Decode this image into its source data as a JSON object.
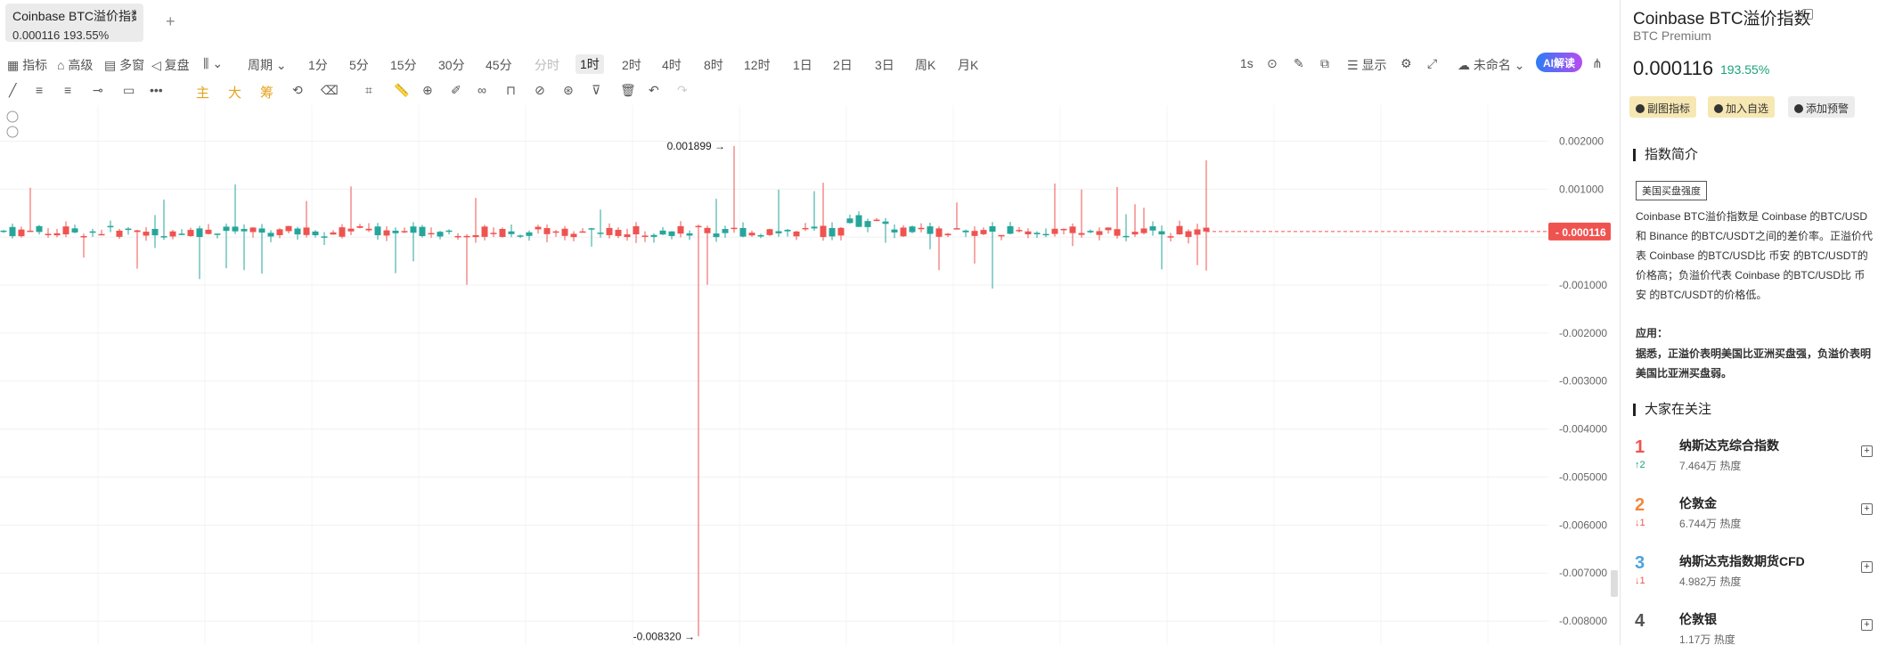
{
  "tab": {
    "title": "Coinbase BTC溢价指数",
    "subtitle": "0.000116 193.55%",
    "add": "+"
  },
  "toolbar": {
    "indicators": "指标",
    "advanced": "高级",
    "multi_window": "多窗",
    "replay": "复盘",
    "period": "周期",
    "intervals": [
      "1分",
      "5分",
      "15分",
      "30分",
      "45分",
      "分时",
      "1时",
      "2时",
      "4时",
      "8时",
      "12时",
      "1日",
      "2日",
      "3日",
      "周K",
      "月K"
    ],
    "active_interval": "1时",
    "refresh": "1s",
    "display": "显示",
    "layout_name": "未命名",
    "ai": "AI解读"
  },
  "drawbar": {
    "main": "主",
    "big": "大",
    "chip": "筹"
  },
  "chart_data": {
    "type": "candlestick",
    "yticks": [
      0.002,
      0.001,
      0,
      -0.001,
      -0.002,
      -0.003,
      -0.004,
      -0.005,
      -0.006,
      -0.007,
      -0.008
    ],
    "ytick_labels": [
      "0.002000",
      "0.001000",
      "",
      "-0.001000",
      "-0.002000",
      "-0.003000",
      "-0.004000",
      "-0.005000",
      "-0.006000",
      "-0.007000",
      "-0.008000"
    ],
    "ylim": [
      -0.0085,
      0.00275
    ],
    "current_price": 0.000116,
    "current_label": "0.000116",
    "max_label": "0.001899",
    "max_value": 0.001899,
    "max_index": 82,
    "min_label": "-0.008320",
    "min_value": -0.00832,
    "min_index": 78,
    "candle_count": 136,
    "up_color": "#26a69a",
    "down_color": "#ef5350"
  },
  "sidebar": {
    "title": "Coinbase BTC溢价指数",
    "subtitle": "BTC Premium",
    "price": "0.000116",
    "change": "193.55%",
    "buttons": [
      "副图指标",
      "加入自选",
      "添加预警"
    ],
    "intro_heading": "指数简介",
    "intro_tag": "美国买盘强度",
    "intro_text": "Coinbase BTC溢价指数是 Coinbase 的BTC/USD和 Binance 的BTC/USDT之间的差价率。正溢价代表 Coinbase 的BTC/USD比 币安 的BTC/USDT的价格高；负溢价代表 Coinbase 的BTC/USD比 币安 的BTC/USDT的价格低。",
    "app_heading": "应用：",
    "app_text": "据悉，正溢价表明美国比亚洲买盘强，负溢价表明美国比亚洲买盘弱。",
    "watch_heading": "大家在关注",
    "watch_list": [
      {
        "rank": "1",
        "move": "↑2",
        "name": "纳斯达克综合指数",
        "heat": "7.464万 热度",
        "color": "#ef5350"
      },
      {
        "rank": "2",
        "move": "↓1",
        "name": "伦敦金",
        "heat": "6.744万 热度",
        "color": "#f0883e"
      },
      {
        "rank": "3",
        "move": "↓1",
        "name": "纳斯达克指数期货CFD",
        "heat": "4.982万 热度",
        "color": "#4aa3df"
      },
      {
        "rank": "4",
        "move": "",
        "name": "伦敦银",
        "heat": "1.17万 热度",
        "color": "#555555"
      }
    ]
  }
}
